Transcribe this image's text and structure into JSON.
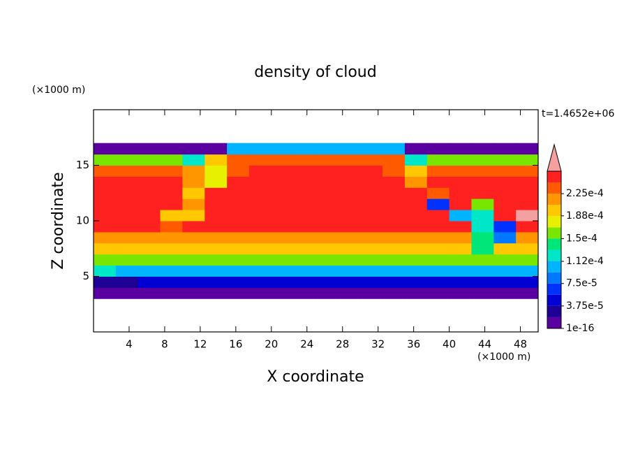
{
  "chart_data": {
    "type": "contour",
    "title": "density of cloud",
    "x_label": "X coordinate",
    "y_label": "Z coordinate",
    "x_unit": "(×1000 m)",
    "y_unit": "(×1000 m)",
    "time_label": "t=1.4652e+06",
    "xlim": [
      0,
      50
    ],
    "ylim": [
      0,
      20
    ],
    "xticks": [
      4,
      8,
      12,
      16,
      20,
      24,
      28,
      32,
      36,
      40,
      44,
      48
    ],
    "yticks": [
      5,
      10,
      15
    ],
    "xbins": [
      0,
      2.5,
      5,
      7.5,
      10,
      12.5,
      15,
      17.5,
      20,
      22.5,
      25,
      27.5,
      30,
      32.5,
      35,
      37.5,
      40,
      42.5,
      45,
      47.5,
      50
    ],
    "ybins": [
      3,
      4,
      5,
      6,
      7,
      8,
      9,
      10,
      11,
      12,
      13,
      14,
      15,
      16,
      17
    ],
    "values": [
      [
        1e-05,
        1e-05,
        1e-05,
        1e-05,
        1e-05,
        1e-05,
        1e-05,
        1e-05,
        1e-05,
        1e-05,
        1e-05,
        1e-05,
        1e-05,
        1e-05,
        1e-05,
        1e-05,
        1e-05,
        1e-05,
        1e-05,
        1e-05
      ],
      [
        3e-05,
        3e-05,
        4.5e-05,
        4.5e-05,
        4.5e-05,
        4.5e-05,
        4.5e-05,
        4.5e-05,
        4.5e-05,
        4.5e-05,
        4.5e-05,
        4.5e-05,
        4.5e-05,
        4.5e-05,
        4.5e-05,
        4.5e-05,
        4.5e-05,
        4.5e-05,
        4.5e-05,
        4.5e-05
      ],
      [
        0.00013,
        0.0001,
        0.0001,
        0.0001,
        0.0001,
        0.0001,
        0.0001,
        0.0001,
        0.0001,
        0.0001,
        0.0001,
        0.0001,
        0.0001,
        0.0001,
        0.0001,
        0.0001,
        0.0001,
        0.0001,
        0.0001,
        0.00011
      ],
      [
        0.00016,
        0.00016,
        0.00016,
        0.00016,
        0.00016,
        0.00016,
        0.00016,
        0.00016,
        0.00016,
        0.00016,
        0.00016,
        0.00016,
        0.00016,
        0.00016,
        0.00016,
        0.00016,
        0.00016,
        0.00016,
        0.00016,
        0.00016
      ],
      [
        0.000195,
        0.000195,
        0.000195,
        0.000195,
        0.000195,
        0.000195,
        0.000195,
        0.000195,
        0.000195,
        0.000195,
        0.000195,
        0.000195,
        0.000195,
        0.000195,
        0.000195,
        0.000195,
        0.000195,
        0.00014,
        0.000195,
        0.000195
      ],
      [
        0.00022,
        0.00022,
        0.00022,
        0.00022,
        0.00022,
        0.00022,
        0.00022,
        0.00022,
        0.00022,
        0.00022,
        0.00022,
        0.00022,
        0.00022,
        0.00022,
        0.00022,
        0.00022,
        0.00022,
        0.00014,
        8e-05,
        0.00022
      ],
      [
        0.000245,
        0.000245,
        0.000245,
        0.00023,
        0.000245,
        0.000245,
        0.000245,
        0.000245,
        0.000245,
        0.000245,
        0.000245,
        0.000245,
        0.000245,
        0.000245,
        0.000245,
        0.000245,
        0.000245,
        0.00012,
        6e-05,
        0.000245
      ],
      [
        0.000245,
        0.000245,
        0.000245,
        0.0002,
        0.00019,
        0.000245,
        0.000245,
        0.000245,
        0.000245,
        0.000245,
        0.000245,
        0.000245,
        0.000245,
        0.000245,
        0.000245,
        0.000245,
        0.0001,
        0.00013,
        0.000245,
        0.00027
      ],
      [
        0.000245,
        0.000245,
        0.000245,
        0.000245,
        0.00021,
        0.000245,
        0.000245,
        0.000245,
        0.000245,
        0.000245,
        0.000245,
        0.000245,
        0.000245,
        0.000245,
        0.000245,
        6e-05,
        0.000245,
        0.00016,
        0.000245,
        0.000245
      ],
      [
        0.000245,
        0.000245,
        0.000245,
        0.000245,
        0.00019,
        0.000245,
        0.000245,
        0.000245,
        0.000245,
        0.000245,
        0.000245,
        0.000245,
        0.000245,
        0.000245,
        0.000245,
        0.00023,
        0.000245,
        0.000245,
        0.000245,
        0.000245
      ],
      [
        0.000245,
        0.000245,
        0.000245,
        0.000245,
        0.00021,
        0.00018,
        0.000245,
        0.000245,
        0.000245,
        0.000245,
        0.000245,
        0.000245,
        0.000245,
        0.000245,
        0.00022,
        0.000245,
        0.000245,
        0.000245,
        0.000245,
        0.000245
      ],
      [
        0.000235,
        0.000235,
        0.000235,
        0.000235,
        0.00022,
        0.00017,
        0.000235,
        0.000245,
        0.000245,
        0.000245,
        0.000245,
        0.000245,
        0.000245,
        0.000235,
        0.0002,
        0.000235,
        0.000235,
        0.000235,
        0.000235,
        0.000235
      ],
      [
        0.00015,
        0.00015,
        0.00015,
        0.00015,
        0.00012,
        0.0002,
        0.00024,
        0.00024,
        0.00024,
        0.00024,
        0.00024,
        0.00024,
        0.00024,
        0.00024,
        0.00013,
        0.00016,
        0.00016,
        0.00016,
        0.00016,
        0.00016
      ],
      [
        1e-05,
        1e-05,
        1e-05,
        1e-05,
        1e-05,
        1e-05,
        0.0001,
        0.0001,
        0.0001,
        0.0001,
        0.0001,
        0.0001,
        0.0001,
        0.0001,
        1e-05,
        1e-05,
        1e-05,
        1e-05,
        1e-05,
        1e-05
      ]
    ],
    "levels": [
      1e-16,
      1.875e-05,
      3.75e-05,
      5.625e-05,
      7.5e-05,
      9.375e-05,
      0.0001125,
      0.00013125,
      0.00015,
      0.00016875,
      0.0001875,
      0.00020625,
      0.000225,
      0.00024375,
      0.0002625
    ],
    "colors": [
      "#5a00a0",
      "#1e0096",
      "#0000d2",
      "#0032ff",
      "#0078ff",
      "#00b4ff",
      "#00e6c8",
      "#00e678",
      "#78e600",
      "#e6f000",
      "#ffc800",
      "#ff9600",
      "#ff5a00",
      "#ff2020"
    ],
    "extend_color": "#f5a0a0",
    "colorbar_ticks": [
      {
        "value": 1e-16,
        "label": "1e-16"
      },
      {
        "value": 3.75e-05,
        "label": "3.75e-5"
      },
      {
        "value": 7.5e-05,
        "label": "7.5e-5"
      },
      {
        "value": 0.000112,
        "label": "1.12e-4"
      },
      {
        "value": 0.00015,
        "label": "1.5e-4"
      },
      {
        "value": 0.000188,
        "label": "1.88e-4"
      },
      {
        "value": 0.000225,
        "label": "2.25e-4"
      }
    ]
  }
}
